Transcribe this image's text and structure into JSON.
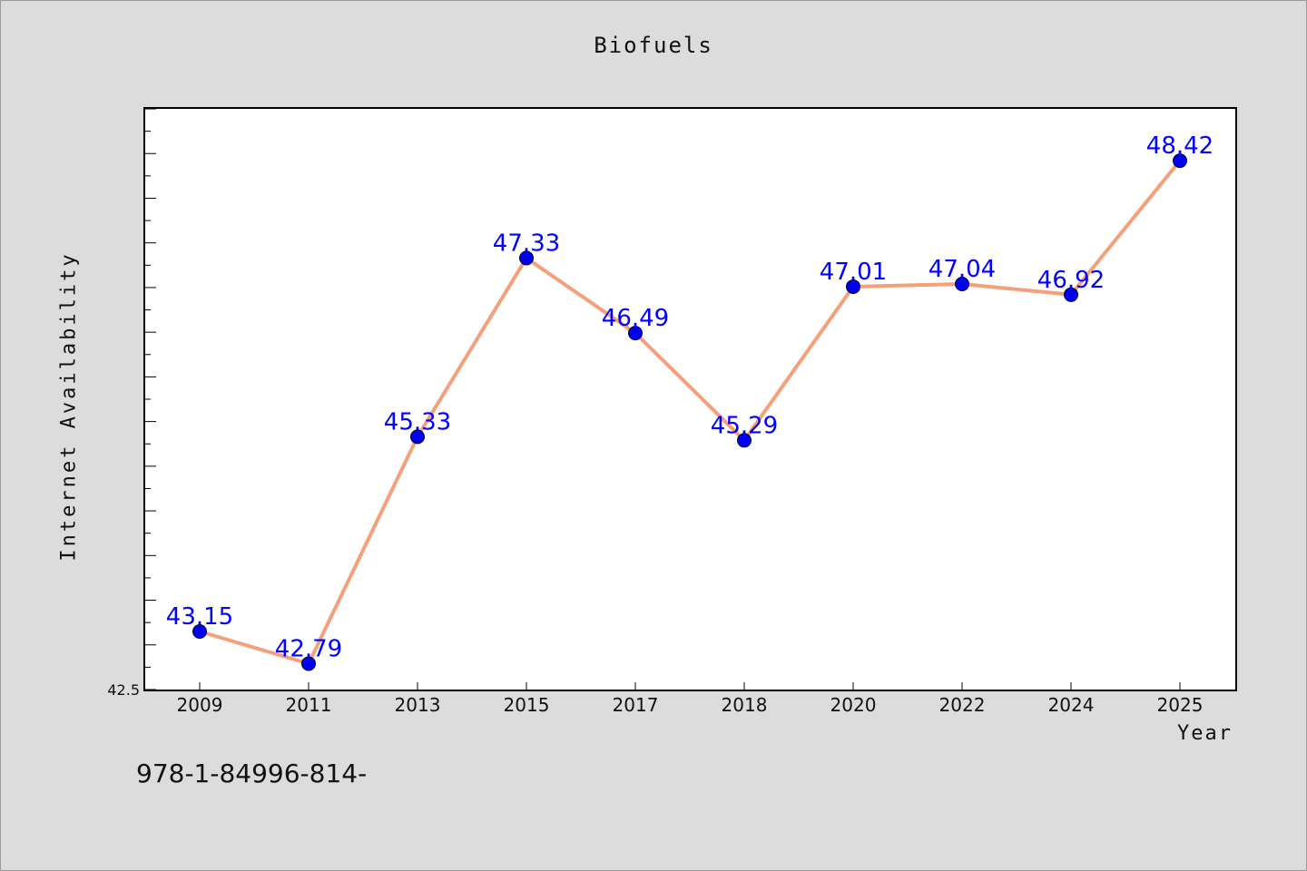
{
  "footer_note": "978-1-84996-814-",
  "chart_data": {
    "type": "line",
    "title": "Biofuels",
    "xlabel": "Year",
    "ylabel": "Internet Availability",
    "categories": [
      "2009",
      "2011",
      "2013",
      "2015",
      "2017",
      "2018",
      "2020",
      "2022",
      "2024",
      "2025"
    ],
    "series": [
      {
        "values": [
          43.15,
          42.79,
          45.33,
          47.33,
          46.49,
          45.29,
          47.01,
          47.04,
          46.92,
          48.42
        ],
        "line_color": "#f4a07a",
        "marker_color": "#0000ee",
        "label_color": "#0000ff"
      }
    ],
    "ylim": [
      42.5,
      49.0
    ],
    "yticks_labeled": [
      "42.5"
    ],
    "grid": false,
    "data_labels": [
      "43.15",
      "42.79",
      "45.33",
      "47.33",
      "46.49",
      "45.29",
      "47.01",
      "47.04",
      "46.92",
      "48.42"
    ]
  }
}
